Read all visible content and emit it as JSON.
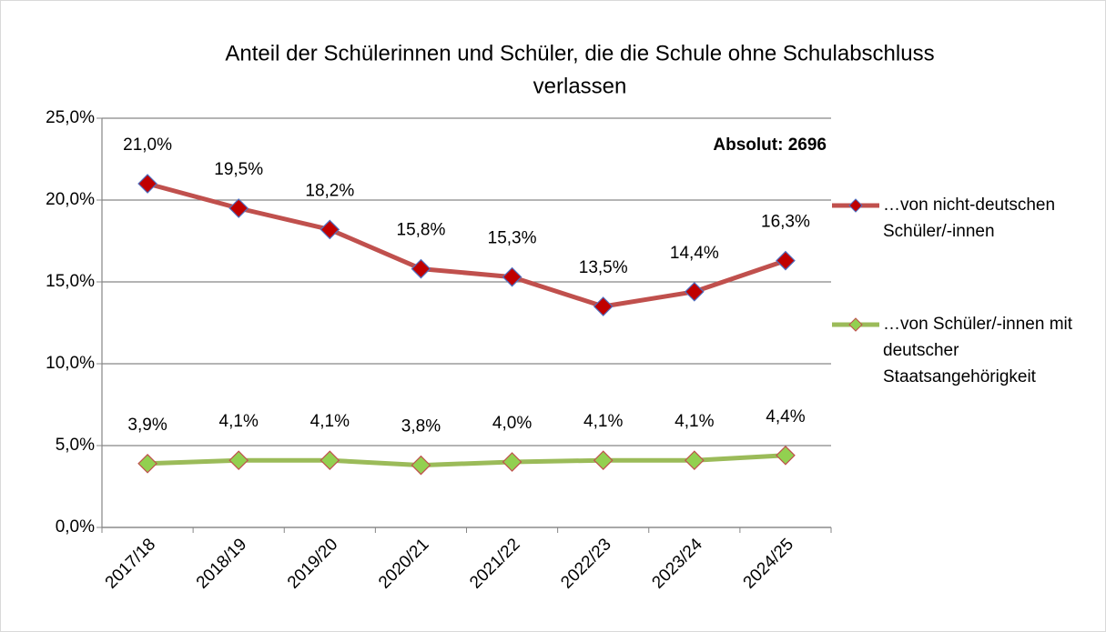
{
  "chart_data": {
    "type": "line",
    "title": [
      "Anteil der Schülerinnen und Schüler, die die Schule ohne Schulabschluss",
      "verlassen"
    ],
    "annotation": "Absolut: 2696",
    "categories": [
      "2017/18",
      "2018/19",
      "2019/20",
      "2020/21",
      "2021/22",
      "2022/23",
      "2023/24",
      "2024/25"
    ],
    "series": [
      {
        "name": "…von nicht-deutschen Schüler/-innen",
        "color": "#c0504d",
        "marker_color": "#c00000",
        "marker_edge": "#4f6fc0",
        "values": [
          21.0,
          19.5,
          18.2,
          15.8,
          15.3,
          13.5,
          14.4,
          16.3
        ],
        "value_labels": [
          "21,0%",
          "19,5%",
          "18,2%",
          "15,8%",
          "15,3%",
          "13,5%",
          "14,4%",
          "16,3%"
        ]
      },
      {
        "name": "…von Schüler/-innen mit deutscher Staatsangehörigkeit",
        "color": "#9bbb59",
        "marker_color": "#92d050",
        "marker_edge": "#c0504d",
        "values": [
          3.9,
          4.1,
          4.1,
          3.8,
          4.0,
          4.1,
          4.1,
          4.4
        ],
        "value_labels": [
          "3,9%",
          "4,1%",
          "4,1%",
          "3,8%",
          "4,0%",
          "4,1%",
          "4,1%",
          "4,4%"
        ]
      }
    ],
    "ylim": [
      0,
      25
    ],
    "yticks": [
      {
        "value": 0,
        "label": "0,0%"
      },
      {
        "value": 5,
        "label": "5,0%"
      },
      {
        "value": 10,
        "label": "10,0%"
      },
      {
        "value": 15,
        "label": "15,0%"
      },
      {
        "value": 20,
        "label": "20,0%"
      },
      {
        "value": 25,
        "label": "25,0%"
      }
    ],
    "grid": true,
    "legend": "right"
  }
}
